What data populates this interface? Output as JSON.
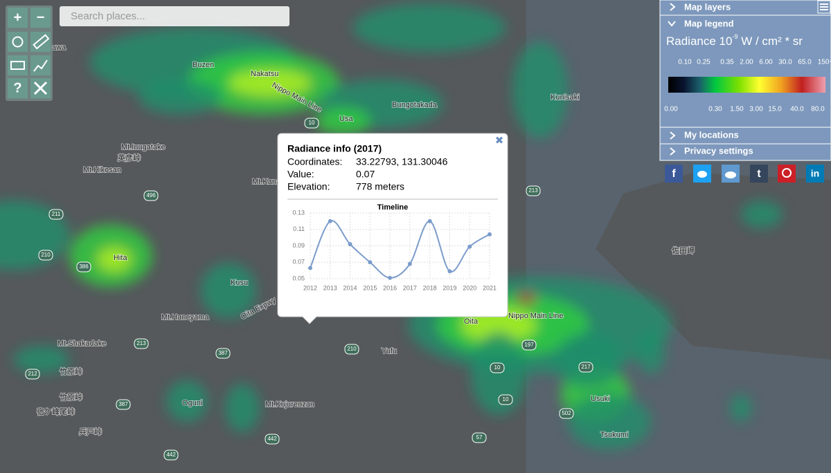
{
  "toolbar": {
    "buttons": [
      "+",
      "−",
      "?"
    ],
    "search_placeholder": "Search places..."
  },
  "panel": {
    "sections": [
      "Map layers",
      "Map legend",
      "My locations",
      "Privacy settings"
    ],
    "legend": {
      "title": "Radiance 10",
      "title_exponent": "-9",
      "title_unit": " W / cm² * sr",
      "top_labels": [
        "0.10",
        "0.25",
        "0.35",
        "2.00",
        "6.00",
        "30.0",
        "65.0",
        "150+"
      ],
      "bottom_labels": [
        "0.00",
        "0.30",
        "1.50",
        "3.00",
        "15.0",
        "40.0",
        "80.0"
      ]
    }
  },
  "social": [
    "f",
    "t",
    "in"
  ],
  "popup": {
    "title": "Radiance info (2017)",
    "rows": [
      [
        "Coordinates:",
        "33.22793, 131.30046"
      ],
      [
        "Value:",
        "0.07"
      ],
      [
        "Elevation:",
        "778 meters"
      ]
    ],
    "close": "✖"
  },
  "chart_data": {
    "type": "line",
    "title": "Timeline",
    "categories": [
      "2012",
      "2013",
      "2014",
      "2015",
      "2016",
      "2017",
      "2018",
      "2019",
      "2020",
      "2021"
    ],
    "series": [
      {
        "color": "#7b9ccb",
        "values": [
          0.063,
          0.12,
          0.092,
          0.07,
          0.051,
          0.068,
          0.12,
          0.059,
          0.089,
          0.104
        ]
      }
    ],
    "ylim": [
      0.05,
      0.13
    ],
    "yticks": [
      0.05,
      0.07,
      0.09,
      0.11,
      0.13
    ],
    "grid": true
  },
  "map_labels": [
    "Buzen",
    "Nakatsu",
    "Nippo Main Line",
    "Bungotakada",
    "Usa",
    "Kunisaki",
    "Mt.Inugatake",
    "Mt.Hikosan",
    "英彦峠",
    "Hita",
    "Kusu",
    "Mt.Haneyama",
    "Oita",
    "Nippo Main Line",
    "Yufu",
    "Mt.Shakadake",
    "竹原峠",
    "竹原峠",
    "宿ケ峰尾峠",
    "兵戸峠",
    "Oguni",
    "Mt.Kujurenzan",
    "Usuki",
    "Tsukumi",
    "佐田岬",
    "Mt.Kana",
    "Oita Expwy",
    "awa"
  ],
  "road_numbers": [
    "496",
    "211",
    "210",
    "386",
    "10",
    "213",
    "10",
    "197",
    "442",
    "387",
    "502",
    "57",
    "217",
    "212",
    "387",
    "10",
    "213",
    "442",
    "210"
  ]
}
